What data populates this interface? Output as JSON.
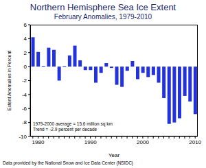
{
  "chart_data": {
    "type": "bar",
    "title": "Northern Hemisphere Sea Ice Extent",
    "subtitle": "February Anomalies, 1979-2010",
    "x_label": "Year",
    "y_label": "Extent Anomalies in Percent",
    "annotations": [
      "1979-2000 average = 15.6 million sq km",
      "Trend = -2.9 percent per decade"
    ],
    "footer": "Data provided by the National Snow and Ice Data Center (NSIDC)",
    "categories": [
      null,
      1980,
      null,
      null,
      null,
      null,
      null,
      null,
      null,
      null,
      null,
      1990,
      null,
      null,
      null,
      null,
      null,
      null,
      null,
      null,
      null,
      2000,
      null,
      null,
      null,
      null,
      null,
      null,
      null,
      null,
      null,
      2010
    ],
    "values": [
      4.2,
      2.1,
      0.1,
      2.7,
      2.4,
      -2.0,
      0.1,
      1.6,
      3.0,
      0.9,
      -0.5,
      -0.5,
      -2.3,
      -0.9,
      0.5,
      -0.2,
      -2.6,
      -2.9,
      -0.6,
      0.8,
      -1.8,
      -0.9,
      -1.5,
      -1.2,
      -2.3,
      -4.5,
      -8.2,
      -8.0,
      -7.4,
      -4.2,
      -5.0,
      -6.8
    ],
    "color": "#2233dd",
    "ylim": [
      -10,
      6
    ],
    "yticks": [
      -10,
      -8,
      -6,
      -4,
      -2,
      0,
      2,
      4,
      6
    ],
    "grid": false
  }
}
